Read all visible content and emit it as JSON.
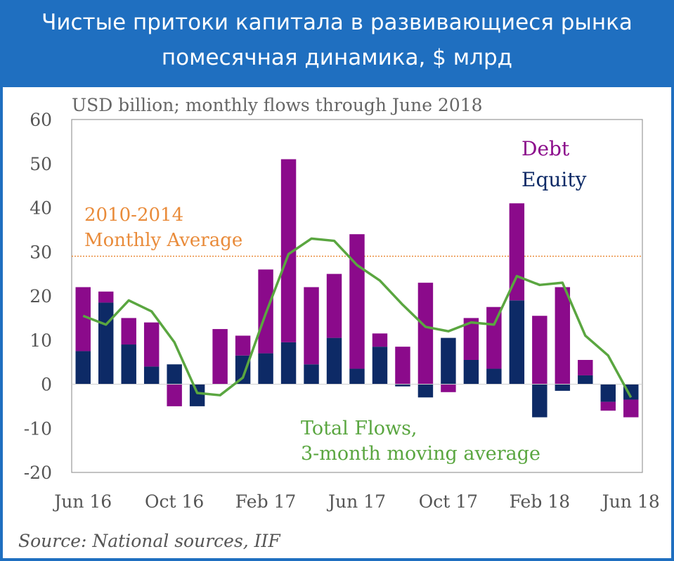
{
  "header": {
    "line1": "Чистые притоки капитала в развивающиеся рынка",
    "line2": "помесячная динамика, $ млрд"
  },
  "colors": {
    "header_bg": "#1f6fc0",
    "debt": "#8b0a8b",
    "equity": "#0d2a66",
    "moving_average": "#5aa640",
    "average_line": "#e98b3a"
  },
  "chart_data": {
    "type": "bar",
    "subtitle": "USD billion; monthly flows through June 2018",
    "stacked": true,
    "ylim": [
      -20,
      60
    ],
    "yticks": [
      60,
      50,
      40,
      30,
      20,
      10,
      0,
      -10,
      -20
    ],
    "categories": [
      "Jun 16",
      "Jul 16",
      "Aug 16",
      "Sep 16",
      "Oct 16",
      "Nov 16",
      "Dec 16",
      "Jan 17",
      "Feb 17",
      "Mar 17",
      "Apr 17",
      "May 17",
      "Jun 17",
      "Jul 17",
      "Aug 17",
      "Sep 17",
      "Oct 17",
      "Nov 17",
      "Dec 17",
      "Jan 18",
      "Feb 18",
      "Mar 18",
      "Apr 18",
      "May 18",
      "Jun 18"
    ],
    "xtick_labels": [
      "Jun 16",
      "Oct 16",
      "Feb 17",
      "Jun 17",
      "Oct 17",
      "Feb 18",
      "Jun 18"
    ],
    "xtick_indices": [
      0,
      4,
      8,
      12,
      16,
      20,
      24
    ],
    "series": [
      {
        "name": "Debt",
        "values": [
          14.5,
          2.5,
          6,
          10,
          -5,
          0,
          12.5,
          4.5,
          19,
          41.5,
          17.5,
          14.5,
          30.5,
          3,
          8.5,
          23,
          -1.8,
          9.5,
          14,
          22,
          15.5,
          22,
          3.5,
          -2,
          -4
        ]
      },
      {
        "name": "Equity",
        "values": [
          7.5,
          18.5,
          9,
          4,
          4.5,
          -5,
          0,
          6.5,
          7,
          9.5,
          4.5,
          10.5,
          3.5,
          8.5,
          -0.5,
          -3,
          10.5,
          5.5,
          3.5,
          19,
          -7.5,
          -1.5,
          2,
          -4,
          -3.5
        ]
      }
    ],
    "moving_average": {
      "name": "Total Flows, 3-month moving average",
      "values": [
        15.5,
        13.5,
        19,
        16.5,
        9.5,
        -2,
        -2.5,
        1.5,
        16,
        29.5,
        33,
        32.5,
        27,
        23.5,
        18,
        13,
        12,
        14,
        13.5,
        24.5,
        22.5,
        23,
        11,
        6.5,
        -3
      ]
    },
    "reference_line": {
      "label_line1": "2010-2014",
      "label_line2": "Monthly Average",
      "value": 29
    },
    "annotations": {
      "debt_label": "Debt",
      "equity_label": "Equity",
      "ma_label_line1": "Total Flows,",
      "ma_label_line2": "3-month moving average"
    }
  },
  "source": "Source: National sources, IIF"
}
